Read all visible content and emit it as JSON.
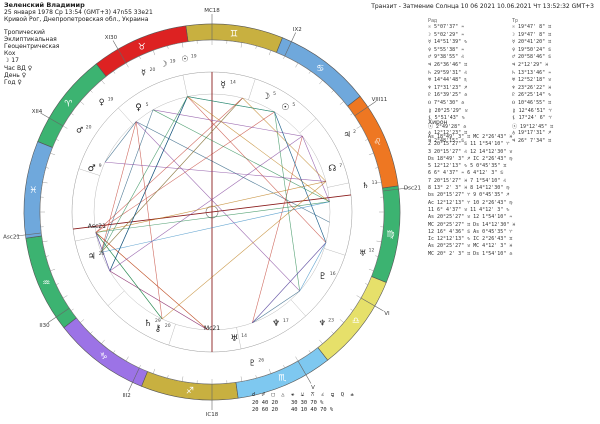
{
  "header": {
    "name": "Зеленский Владимир",
    "datetime": "25 января 1978  Ср  13:54 (GMT+3) 47n55  33e21",
    "place": "Кривой Рог, Днепропетровская обл., Украина",
    "settings": [
      "Тропический",
      "Эклиптикальная",
      "Геоцентрическая",
      "Кох"
    ],
    "moon_line": "☽  17",
    "hour_line": "Час ВД  ♀",
    "day_line": "День  ♀",
    "year_line": "Год  ♀"
  },
  "transit_title": "Транзит - Затмение Солнца 10 06 2021 10.06.2021  Чт  13:52:32 GMT+3",
  "natal_header": "Рад",
  "transit_header": "Тр",
  "natal_rows": [
    "☉  5°07'37\" ♒",
    "☽  5°02'29\" ♒",
    "☿ 14°51'39\" ♑",
    "♀  5°55'38\" ♒",
    "♂  9°38'55\" ♌",
    "♃ 26°36'46\" ♊",
    "♄ 29°59'31\" ♌",
    "♅ 14°44'48\" ♏",
    "♆ 17°31'23\" ♐",
    "♇ 16°39'25\" ♎",
    "☊  7°45'30\" ♎",
    "⚷ 20°25'29\" ♉",
    "⚸  5°51'43\" ♑",
    "ⓢ  2°49'28\" ♎",
    "♁ 12°12'23\" ♊",
    "♃  2°48'15\" ♋"
  ],
  "transit_rows": [
    "☉ 19°47' 8\" ♊",
    "☽ 19°47' 8\" ♊",
    "☿ 20°41'20\" ♊",
    "♀ 19°50'24\" ♋",
    "♂ 20°58'46\" ♋",
    "♃  2°12'29\" ♓",
    "♄ 13°13'46\" ♒",
    "♅ 12°52'18\" ♉",
    "♆ 23°26'22\" ♓",
    "♇ 26°25'14\" ♑",
    "☊ 10°46'55\" ♊",
    "⚷ 12°46'51\" ♈",
    "⚸ 17°24' 6\" ♈",
    "ⓢ 19°12'45\" ♊",
    "♁ 19°17'31\" ♐",
    "♃ 26° 7'34\" ♊"
  ],
  "chiron_label": "Хирон",
  "aspect_rows": [
    "As 18°49' 3\" ♊    MC  2°26'43\" ♓",
    "2 20°15'27\" ♋    11  1°54'10\" ♈",
    "3 20°15'27\" ♌    12 14°12'30\" ♉",
    "Ds 18°49' 3\" ♐    IC  2°26'43\" ♍",
    "5 12°12'13\" ♑    5  0°45'35\" ♊",
    "6  6° 4'37\" ♒    6  4°12' 3\" ♋",
    "7 20°15'27\" ♓    7  1°54'10\" ♌",
    "8 13° 2' 3\" ♓    8 14°12'30\" ♍",
    "bs 20°15'27\" ♈    9  0°45'35\" ♐",
    "Ac 12°12'13\" ♈    10  2°26'43\" ♍",
    "11  6° 4'37\" ♉    11  4°12' 3\" ♑",
    "As 20°25'27\" ♉    12  1°54'10\" ♒",
    "MC 20°25'27\" ♊    Ds 14°12'30\" ♓",
    "12 16° 4'36\" ♋    As  0°45'35\" ♈",
    "Ic 12°12'13\" ♑    IC  2°26'43\" ♊",
    "As 20°25'27\" ♉    MC  4°12' 3\" ♓",
    "MC 20° 2' 3\" ♊    Ds  1°54'10\" ♎"
  ],
  "orb_rows": [
    "☌  ☍  □  △  ⚹  ⚺  ⚻  ∠  ⚼  Q  ±",
    "20 40 20    30 30 70 %",
    "20 60 20    40 10 40 70 %"
  ],
  "wheel": {
    "zodiac": [
      {
        "sign": "♒",
        "color": "#3cb371"
      },
      {
        "sign": "♑",
        "color": "#9c73e6"
      },
      {
        "sign": "♐",
        "color": "#c8b040"
      },
      {
        "sign": "♏",
        "color": "#7ec8f0"
      },
      {
        "sign": "♎",
        "color": "#e6e06a"
      },
      {
        "sign": "♍",
        "color": "#3cb371"
      },
      {
        "sign": "♌",
        "color": "#ee7722"
      },
      {
        "sign": "♋",
        "color": "#6fa8dc"
      },
      {
        "sign": "♊",
        "color": "#c8b040"
      },
      {
        "sign": "♉",
        "color": "#dd2222"
      },
      {
        "sign": "♈",
        "color": "#3cb371"
      },
      {
        "sign": "♓",
        "color": "#6fa8dc"
      }
    ],
    "cusps": [
      "Asc21",
      "II30",
      "III2",
      "IC18",
      "V",
      "VI",
      "Dsc21",
      "VIII11",
      "IX2",
      "MC18",
      "XI30",
      "XII4"
    ],
    "asc_label": "Asc21",
    "mc_label": "MC18",
    "dsc_label": "Dsc21",
    "ic_label": "IC18",
    "inner_asc": "Asc21",
    "inner_mc": "Mc21",
    "inner_dsc": "Dsc22",
    "inner_ic": "Ic",
    "planets_inner": [
      {
        "glyph": "☉",
        "deg": "5"
      },
      {
        "glyph": "☽",
        "deg": "5"
      },
      {
        "glyph": "☿",
        "deg": "14"
      },
      {
        "glyph": "♀",
        "deg": "5"
      },
      {
        "glyph": "♂",
        "deg": "9"
      },
      {
        "glyph": "♃",
        "deg": "26"
      },
      {
        "glyph": "♄",
        "deg": "29"
      },
      {
        "glyph": "♅",
        "deg": "14"
      },
      {
        "glyph": "♆",
        "deg": "17"
      },
      {
        "glyph": "♇",
        "deg": "16"
      },
      {
        "glyph": "☊",
        "deg": "7"
      },
      {
        "glyph": "⚷",
        "deg": "20"
      }
    ],
    "planets_outer": [
      {
        "glyph": "☉",
        "deg": "19"
      },
      {
        "glyph": "☽",
        "deg": "19"
      },
      {
        "glyph": "☿",
        "deg": "20"
      },
      {
        "glyph": "♀",
        "deg": "19"
      },
      {
        "glyph": "♂",
        "deg": "20"
      },
      {
        "glyph": "♃",
        "deg": "2"
      },
      {
        "glyph": "♄",
        "deg": "13"
      },
      {
        "glyph": "♅",
        "deg": "12"
      },
      {
        "glyph": "♆",
        "deg": "23"
      },
      {
        "glyph": "♇",
        "deg": "26"
      }
    ]
  }
}
